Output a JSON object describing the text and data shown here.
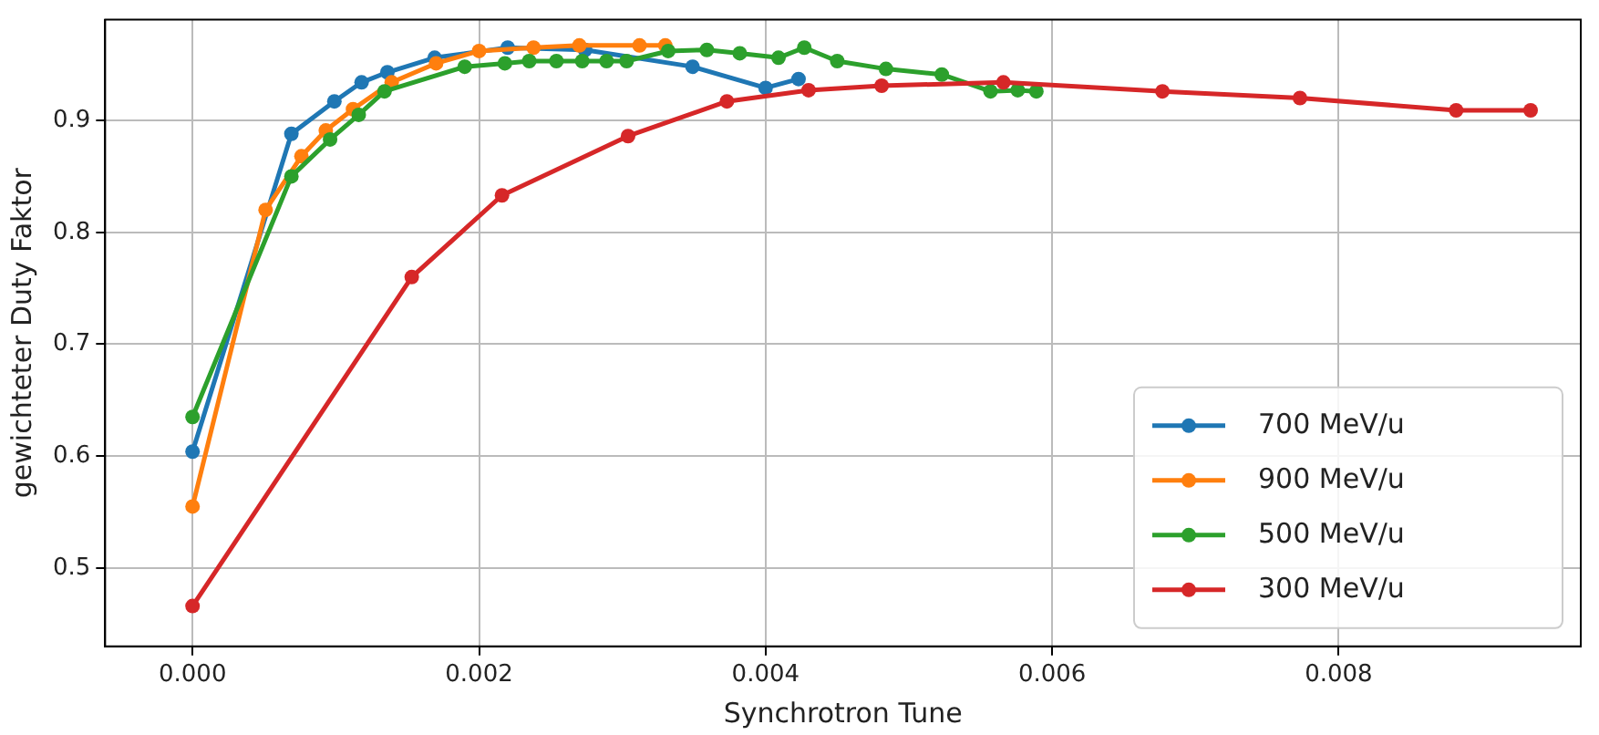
{
  "chart_data": {
    "type": "line",
    "xlabel": "Synchrotron Tune",
    "ylabel": "gewichteter Duty Faktor",
    "xlim": [
      -0.00061,
      0.00969
    ],
    "ylim": [
      0.43,
      0.99
    ],
    "xticks": [
      {
        "value": 0,
        "label": "0.000"
      },
      {
        "value": 0.002,
        "label": "0.002"
      },
      {
        "value": 0.004,
        "label": "0.004"
      },
      {
        "value": 0.006,
        "label": "0.006"
      },
      {
        "value": 0.008,
        "label": "0.008"
      }
    ],
    "yticks": [
      0.5,
      0.6,
      0.7,
      0.8,
      0.9
    ],
    "grid": true,
    "legend": "bottom right",
    "marker": "circle",
    "line_style": "solid",
    "series": [
      {
        "name": "700 MeV/u",
        "color": "#1f77b4",
        "x": [
          0,
          0.00069,
          0.00099,
          0.00118,
          0.00136,
          0.00169,
          0.0022,
          0.00274,
          0.00349,
          0.004,
          0.00423
        ],
        "values": [
          0.604,
          0.888,
          0.917,
          0.934,
          0.943,
          0.956,
          0.965,
          0.963,
          0.948,
          0.929,
          0.937
        ]
      },
      {
        "name": "900 MeV/u",
        "color": "#ff7f0e",
        "x": [
          0,
          0.00051,
          0.00076,
          0.00093,
          0.00112,
          0.00139,
          0.0017,
          0.002,
          0.00238,
          0.0027,
          0.00312,
          0.0033
        ],
        "values": [
          0.555,
          0.82,
          0.868,
          0.891,
          0.91,
          0.934,
          0.951,
          0.962,
          0.965,
          0.967,
          0.967,
          0.967
        ]
      },
      {
        "name": "500 MeV/u",
        "color": "#2ca02c",
        "x": [
          0,
          0.00069,
          0.00096,
          0.00116,
          0.00134,
          0.0019,
          0.00218,
          0.00235,
          0.00254,
          0.00272,
          0.00289,
          0.00303,
          0.00332,
          0.00359,
          0.00382,
          0.00409,
          0.00427,
          0.0045,
          0.00484,
          0.00523,
          0.00557,
          0.00576,
          0.00589
        ],
        "values": [
          0.635,
          0.85,
          0.883,
          0.905,
          0.926,
          0.948,
          0.951,
          0.953,
          0.953,
          0.953,
          0.953,
          0.953,
          0.962,
          0.963,
          0.96,
          0.956,
          0.965,
          0.953,
          0.946,
          0.941,
          0.926,
          0.927,
          0.926
        ]
      },
      {
        "name": "300 MeV/u",
        "color": "#d62728",
        "x": [
          0,
          0.00153,
          0.00216,
          0.00304,
          0.00373,
          0.0043,
          0.00481,
          0.00566,
          0.00677,
          0.00773,
          0.00882,
          0.00934
        ],
        "values": [
          0.466,
          0.76,
          0.833,
          0.886,
          0.917,
          0.927,
          0.931,
          0.934,
          0.926,
          0.92,
          0.909,
          0.909
        ]
      }
    ]
  }
}
